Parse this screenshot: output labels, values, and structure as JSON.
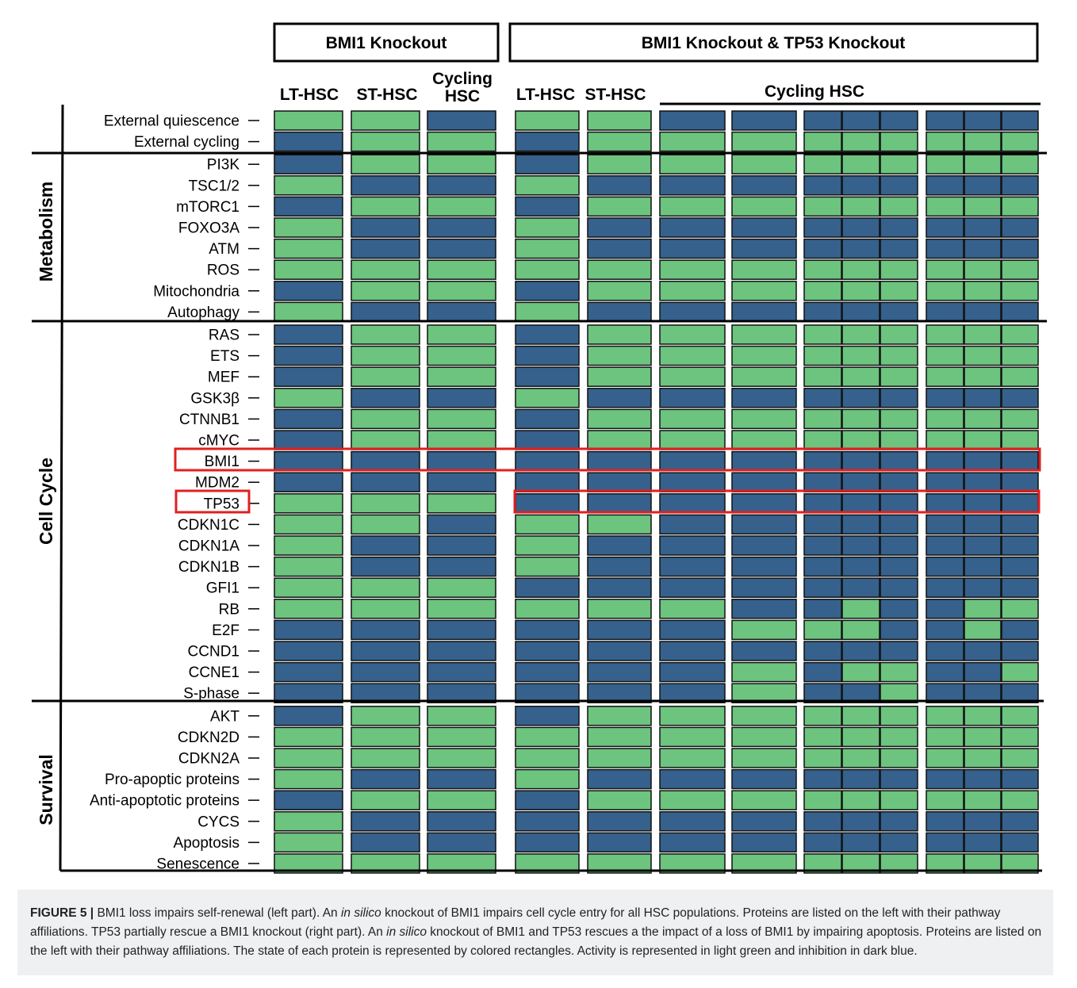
{
  "headers": {
    "group1": "BMI1 Knockout",
    "group2": "BMI1 Knockout & TP53 Knockout",
    "col_lt": "LT-HSC",
    "col_st": "ST-HSC",
    "col_cyc_line1": "Cycling",
    "col_cyc_line2": "HSC",
    "col_lt2": "LT-HSC",
    "col_st2": "ST-HSC",
    "cycling_group": "Cycling HSC"
  },
  "sections": [
    "Metabolism",
    "Cell Cycle",
    "Survival"
  ],
  "rows": [
    "External quiescence",
    "External cycling",
    "PI3K",
    "TSC1/2",
    "mTORC1",
    "FOXO3A",
    "ATM",
    "ROS",
    "Mitochondria",
    "Autophagy",
    "RAS",
    "ETS",
    "MEF",
    "GSK3β",
    "CTNNB1",
    "cMYC",
    "BMI1",
    "MDM2",
    "TP53",
    "CDKN1C",
    "CDKN1A",
    "CDKN1B",
    "GFI1",
    "RB",
    "E2F",
    "CCND1",
    "CCNE1",
    "S-phase",
    "AKT",
    "CDKN2D",
    "CDKN2A",
    "Pro-apoptic proteins",
    "Anti-apoptotic proteins",
    "CYCS",
    "Apoptosis",
    "Senescence"
  ],
  "legend_colors": {
    "active": "#6cc47f",
    "inhibited": "#35618c"
  },
  "chart_data": {
    "type": "heatmap",
    "columns": [
      "BMI1 KO LT-HSC",
      "BMI1 KO ST-HSC",
      "BMI1 KO Cycling HSC",
      "BMI1+TP53 KO LT-HSC",
      "BMI1+TP53 KO ST-HSC",
      "BMI1+TP53 KO Cycling HSC 1",
      "BMI1+TP53 KO Cycling HSC 2",
      "BMI1+TP53 KO Cycling HSC 3a",
      "BMI1+TP53 KO Cycling HSC 3b",
      "BMI1+TP53 KO Cycling HSC 3c",
      "BMI1+TP53 KO Cycling HSC 4a",
      "BMI1+TP53 KO Cycling HSC 4b",
      "BMI1+TP53 KO Cycling HSC 4c"
    ],
    "states": [
      "GGBGGBBBBBBBB",
      "BGGBGGGGGGGGG",
      "BGGBGGGGGGGGG",
      "GBBGBBBBBBBBB",
      "BGGBGGGGGGGGG",
      "GBBGBBBBBBBBB",
      "GBBGBBBBBBBBB",
      "GGGGGGGGGGGGG",
      "BGGBGGGGGGGGG",
      "GBBGBBBBBBBBB",
      "BGGBGGGGGGGGG",
      "BGGBGGGGGGGGG",
      "BGGBGGGGGGGGG",
      "GBBGBBBBBBBBB",
      "BGGBGGGGGGGGG",
      "BGGBGGGGGGGGG",
      "BBBBBBBBBBBBB",
      "BBBBBBBBBBBBB",
      "GGGBBBBBBBBBB",
      "GGBGGBBBBBBBB",
      "GBBGBBBBBBBBB",
      "GBBGBBBBBBBBB",
      "GGGBBBBBBBBBB",
      "GGGGGGBBGBBGG",
      "BBBBBBGGGBBGB",
      "BBBBBBBBBBBBB",
      "BBBBBBGBGGBBG",
      "BBBBBBGBBGBBB",
      "BGGBGGGGGGGGG",
      "GGGGGGGGGGGGG",
      "GGGGGGGGGGGGG",
      "GBBGBBBBBBBBB",
      "BGGBGGGGGGGGG",
      "GBBBBBBBBBBBB",
      "GBBBBBBBBBBBB",
      "GGGGGGGGGGGGG"
    ],
    "state_legend": {
      "G": "active",
      "B": "inhibited"
    },
    "highlighted_rows": [
      "BMI1",
      "TP53"
    ]
  },
  "caption": {
    "label": "FIGURE 5 |",
    "part1": " BMI1 loss impairs self-renewal (left part). An ",
    "em1": "in silico",
    "part2": " knockout of BMI1 impairs cell cycle entry for all HSC populations. Proteins are listed on the left with their pathway affiliations. TP53 partially rescue a BMI1 knockout (right part). An ",
    "em2": "in silico",
    "part3": " knockout of BMI1 and TP53 rescues a the impact of a loss of BMI1 by impairing apoptosis. Proteins are listed on the left with their pathway affiliations. The state of each protein is represented by colored rectangles. Activity is represented in light green and inhibition in dark blue."
  }
}
